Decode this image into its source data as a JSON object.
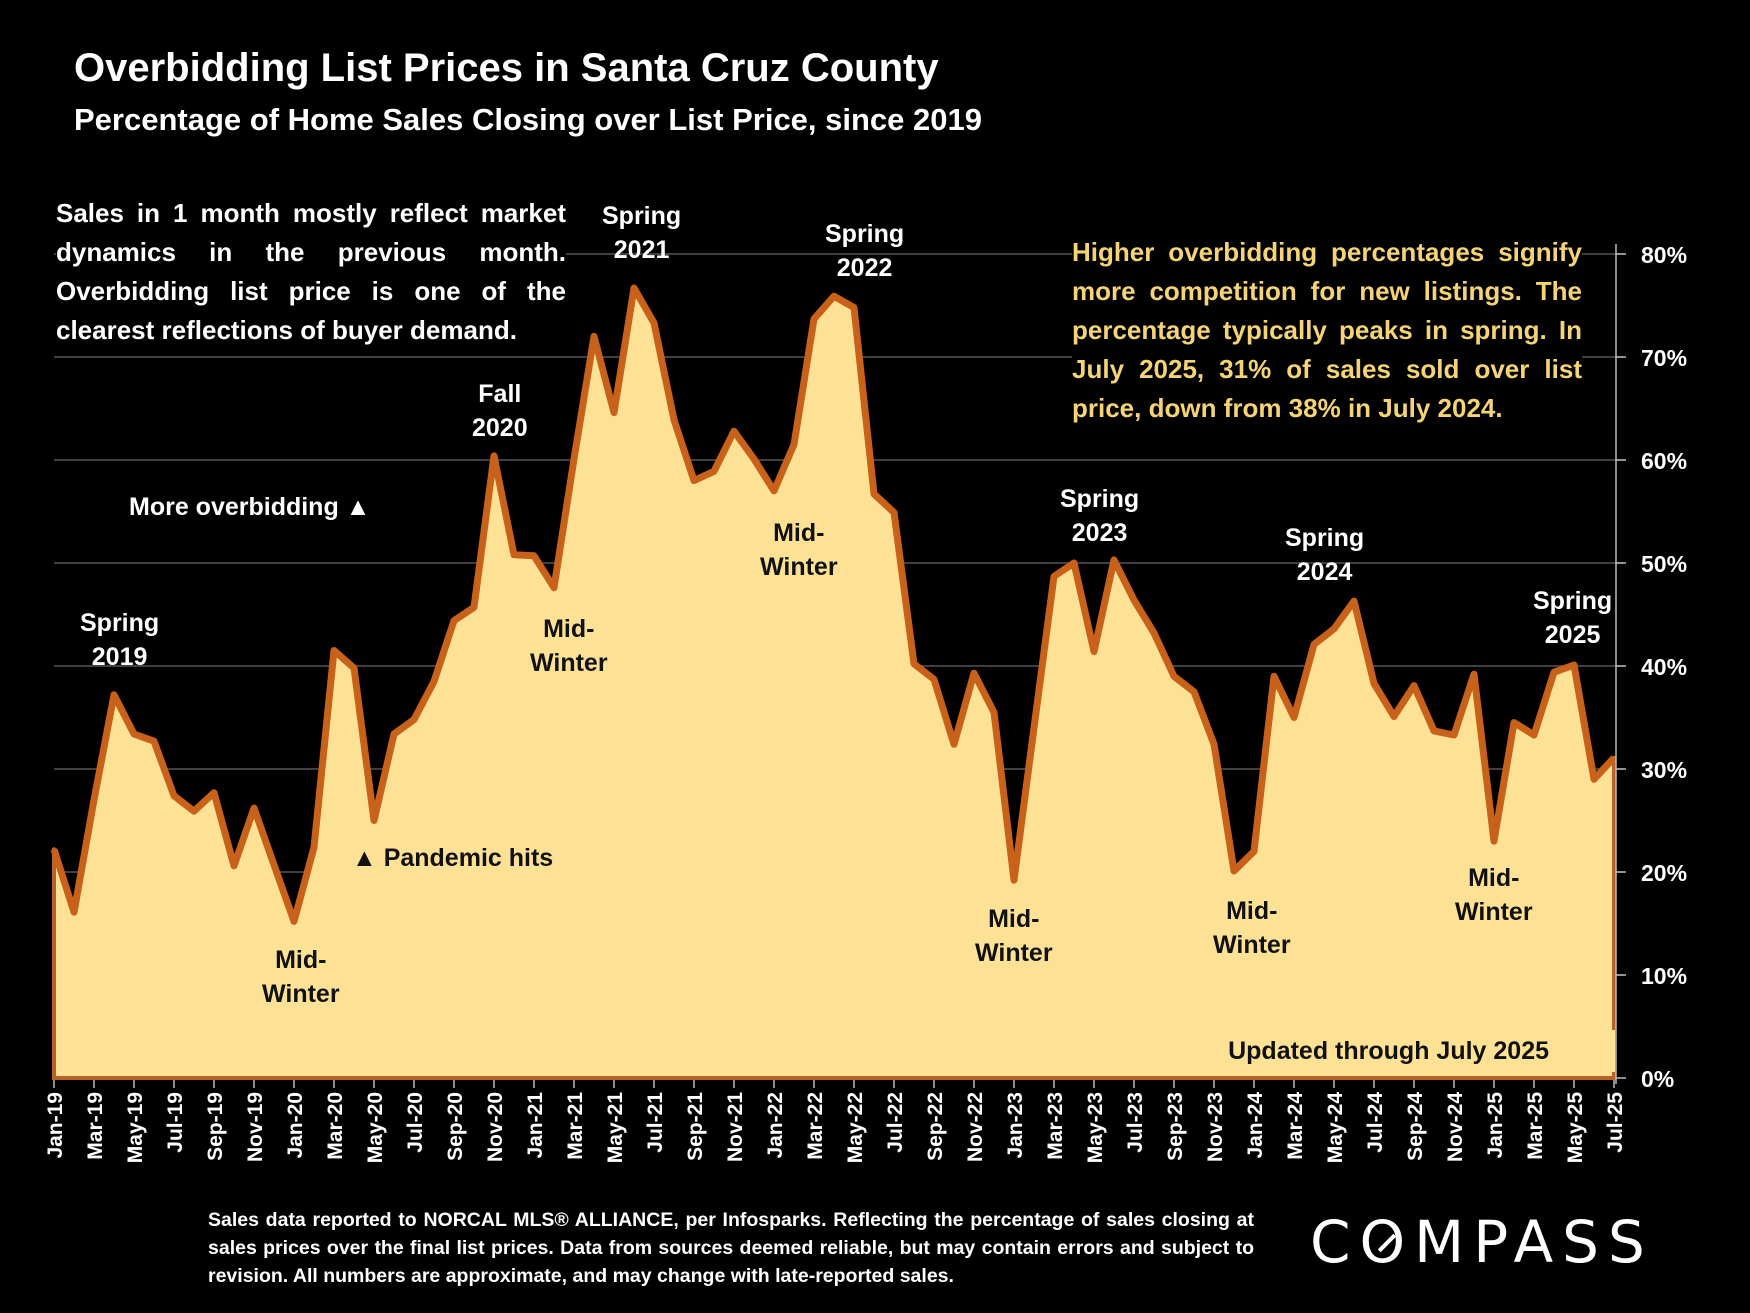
{
  "header": {
    "title": "Overbidding List Prices in Santa Cruz County",
    "subtitle": "Percentage of Home Sales Closing over List Price, since 2019"
  },
  "notes": {
    "left": "Sales in 1 month mostly reflect market dynamics in the previous month. Overbidding list price is one of the clearest reflections of buyer demand.",
    "right": "Higher overbidding percentages signify more competition for new listings. The percentage typically peaks in spring. In July 2025, 31% of sales sold over list price, down from 38% in July 2024."
  },
  "annotations": {
    "spring_2019": [
      "Spring",
      "2019"
    ],
    "spring_2021": [
      "Spring",
      "2021"
    ],
    "spring_2022": [
      "Spring",
      "2022"
    ],
    "spring_2023": [
      "Spring",
      "2023"
    ],
    "spring_2024": [
      "Spring",
      "2024"
    ],
    "spring_2025": [
      "Spring",
      "2025"
    ],
    "fall_2020": [
      "Fall",
      "2020"
    ],
    "midwinter_2020": [
      "Mid-",
      "Winter"
    ],
    "midwinter_2021": [
      "Mid-",
      "Winter"
    ],
    "midwinter_2022": [
      "Mid-",
      "Winter"
    ],
    "midwinter_2023": [
      "Mid-",
      "Winter"
    ],
    "midwinter_2024": [
      "Mid-",
      "Winter"
    ],
    "midwinter_2025": [
      "Mid-",
      "Winter"
    ],
    "more_overbidding": "More overbidding ▲",
    "pandemic": "▲ Pandemic hits",
    "updated": "Updated through July 2025"
  },
  "footer": {
    "source": "Sales data reported to NORCAL MLS® ALLIANCE, per Infosparks. Reflecting the percentage of sales closing at sales prices over the final list prices. Data from sources deemed reliable, but may contain errors and subject to revision. All numbers are approximate, and may change with late-reported sales.",
    "logo_prefix": "C",
    "logo_o": "O",
    "logo_suffix": "MPASS"
  },
  "colors": {
    "fill": "#FDE296",
    "line": "#C8621A",
    "grid": "#555555",
    "highlight_text": "#F5D476"
  },
  "chart_data": {
    "type": "area",
    "title": "Overbidding List Prices in Santa Cruz County",
    "subtitle": "Percentage of Home Sales Closing over List Price, since 2019",
    "xlabel": "",
    "ylabel": "",
    "ylim": [
      0,
      80
    ],
    "y_ticks": [
      0,
      10,
      20,
      30,
      40,
      50,
      60,
      70,
      80
    ],
    "y_tick_labels": [
      "0%",
      "10%",
      "20%",
      "30%",
      "40%",
      "50%",
      "60%",
      "70%",
      "80%"
    ],
    "y_axis_side": "right",
    "grid": true,
    "legend": "none",
    "x_tick_labels": [
      "Jan-19",
      "Mar-19",
      "May-19",
      "Jul-19",
      "Sep-19",
      "Nov-19",
      "Jan-20",
      "Mar-20",
      "May-20",
      "Jul-20",
      "Sep-20",
      "Nov-20",
      "Jan-21",
      "Mar-21",
      "May-21",
      "Jul-21",
      "Sep-21",
      "Nov-21",
      "Jan-22",
      "Mar-22",
      "May-22",
      "Jul-22",
      "Sep-22",
      "Nov-22",
      "Jan-23",
      "Mar-23",
      "May-23",
      "Jul-23",
      "Sep-23",
      "Nov-23",
      "Jan-24",
      "Mar-24",
      "May-24",
      "Jul-24",
      "Sep-24",
      "Nov-24",
      "Jan-25",
      "Mar-25",
      "May-25",
      "Jul-25"
    ],
    "x": [
      "Jan-19",
      "Feb-19",
      "Mar-19",
      "Apr-19",
      "May-19",
      "Jun-19",
      "Jul-19",
      "Aug-19",
      "Sep-19",
      "Oct-19",
      "Nov-19",
      "Dec-19",
      "Jan-20",
      "Feb-20",
      "Mar-20",
      "Apr-20",
      "May-20",
      "Jun-20",
      "Jul-20",
      "Aug-20",
      "Sep-20",
      "Oct-20",
      "Nov-20",
      "Dec-20",
      "Jan-21",
      "Feb-21",
      "Mar-21",
      "Apr-21",
      "May-21",
      "Jun-21",
      "Jul-21",
      "Aug-21",
      "Sep-21",
      "Oct-21",
      "Nov-21",
      "Dec-21",
      "Jan-22",
      "Feb-22",
      "Mar-22",
      "Apr-22",
      "May-22",
      "Jun-22",
      "Jul-22",
      "Aug-22",
      "Sep-22",
      "Oct-22",
      "Nov-22",
      "Dec-22",
      "Jan-23",
      "Feb-23",
      "Mar-23",
      "Apr-23",
      "May-23",
      "Jun-23",
      "Jul-23",
      "Aug-23",
      "Sep-23",
      "Oct-23",
      "Nov-23",
      "Dec-23",
      "Jan-24",
      "Feb-24",
      "Mar-24",
      "Apr-24",
      "May-24",
      "Jun-24",
      "Jul-24",
      "Aug-24",
      "Sep-24",
      "Oct-24",
      "Nov-24",
      "Dec-24",
      "Jan-25",
      "Feb-25",
      "Mar-25",
      "Apr-25",
      "May-25",
      "Jun-25",
      "Jul-25"
    ],
    "series": [
      {
        "name": "% of sales closing over list price",
        "values": [
          22.2,
          16.1,
          27.0,
          37.2,
          33.4,
          32.7,
          27.4,
          25.9,
          27.7,
          20.6,
          26.2,
          20.7,
          15.2,
          22.4,
          41.5,
          39.8,
          25.0,
          33.4,
          34.8,
          38.5,
          44.4,
          45.7,
          60.4,
          50.8,
          50.7,
          47.6,
          60.1,
          72.0,
          64.6,
          76.7,
          73.3,
          63.9,
          58.0,
          58.9,
          62.8,
          60.1,
          57.0,
          61.5,
          73.7,
          75.9,
          74.8,
          56.7,
          54.9,
          40.2,
          38.7,
          32.4,
          39.3,
          35.5,
          19.2,
          34.0,
          48.7,
          50.0,
          41.4,
          50.3,
          46.4,
          43.2,
          39.0,
          37.5,
          32.4,
          20.1,
          22.0,
          39.0,
          35.0,
          42.1,
          43.6,
          46.3,
          38.3,
          35.1,
          38.1,
          33.7,
          33.3,
          39.2,
          23.0,
          34.5,
          33.3,
          39.4,
          40.1,
          29.0,
          31.1
        ]
      }
    ]
  }
}
